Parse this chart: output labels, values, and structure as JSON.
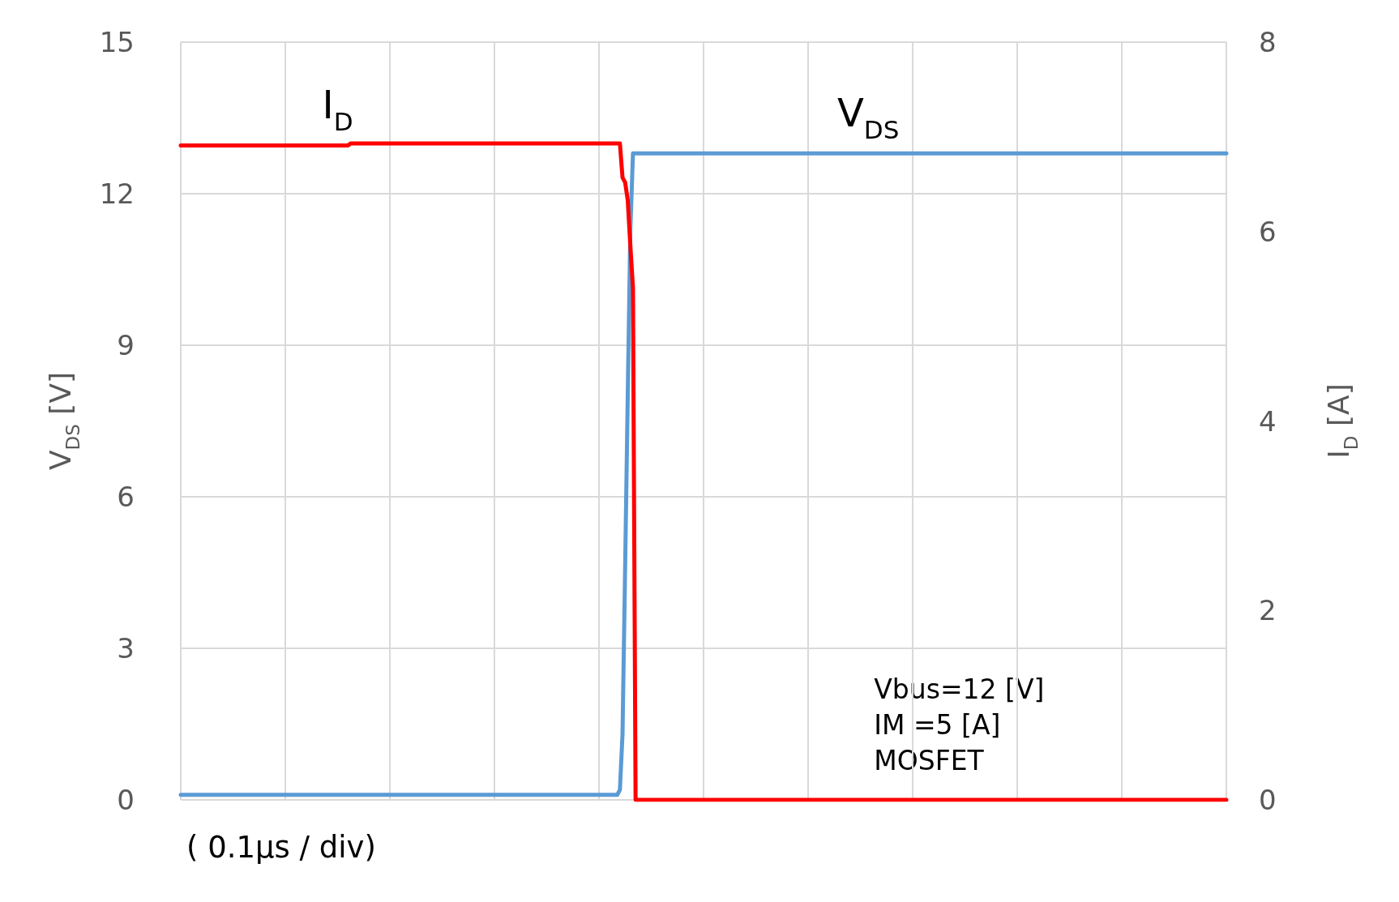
{
  "chart_data": {
    "type": "line",
    "xlabel": "( 0.1μs / div)",
    "ylabel": "V$_{DS}$ [V]",
    "y2label": "I$_{D}$ [A]",
    "annotations": [
      "Vbus=12 [V]",
      "IM =5 [A]",
      "MOSFET"
    ],
    "categories": [
      null,
      null,
      null,
      null,
      null,
      null,
      null,
      null,
      null,
      null,
      null,
      null,
      null,
      null,
      null,
      null,
      null,
      null,
      null,
      null,
      null,
      null,
      null,
      null,
      null,
      null,
      null,
      null,
      null,
      null,
      null,
      null,
      null,
      null,
      null,
      null,
      null,
      null,
      null,
      null,
      null,
      null,
      null,
      null,
      null,
      null,
      null,
      null,
      null,
      null,
      null,
      null,
      null,
      null,
      null,
      null,
      null,
      null,
      null,
      null,
      null,
      null,
      null,
      null,
      null,
      null,
      null,
      null,
      null,
      null,
      null,
      null,
      null,
      null,
      null,
      null,
      null,
      null,
      null,
      null,
      null,
      null,
      null,
      null,
      null,
      null,
      null,
      null,
      null,
      null,
      null,
      null,
      null,
      null,
      null,
      null,
      null,
      null,
      null,
      null,
      null,
      null,
      null,
      null,
      null,
      null,
      null,
      null,
      null,
      null,
      null,
      null,
      null,
      null,
      null,
      null,
      null,
      null,
      null,
      null,
      null,
      null,
      null,
      null,
      null,
      null,
      null,
      null,
      null,
      null,
      null,
      null,
      null,
      null,
      null,
      null,
      null,
      null,
      null,
      null,
      null,
      null,
      null,
      null,
      null,
      null,
      null,
      null,
      null,
      null,
      null,
      null,
      null,
      null,
      null,
      null,
      null,
      null,
      null,
      null,
      null,
      null,
      null,
      null,
      null,
      null,
      null,
      null,
      null,
      null,
      null,
      null,
      null,
      null,
      null,
      null,
      null,
      null,
      null,
      null,
      null,
      null,
      null,
      null,
      null,
      null,
      null,
      null,
      null,
      null,
      null,
      null,
      null,
      null,
      null,
      null,
      null,
      null,
      null,
      null,
      null,
      null,
      null,
      null,
      null,
      null,
      null,
      null,
      null,
      null,
      null,
      null,
      null,
      null,
      null,
      null,
      null,
      null,
      null,
      null,
      null,
      null,
      null,
      null,
      null,
      null,
      null,
      null,
      null,
      null,
      null,
      null,
      null,
      null,
      null,
      null,
      null,
      null,
      null,
      null,
      null,
      null,
      null,
      null,
      null,
      null,
      null,
      null,
      null,
      null,
      null,
      null,
      null,
      null,
      null,
      null,
      null,
      null,
      null,
      null,
      null,
      null,
      null,
      null,
      null,
      null,
      null,
      null,
      null,
      null,
      null,
      null,
      null,
      null,
      null,
      null,
      null,
      null,
      null,
      null,
      null,
      null,
      null,
      null,
      null,
      null,
      null,
      null,
      null,
      null,
      null,
      null,
      null,
      null,
      null,
      null,
      null,
      null,
      null,
      null,
      null,
      null,
      null,
      null,
      null,
      null,
      null,
      null,
      null,
      null,
      null,
      null,
      null,
      null,
      null,
      null,
      null,
      null,
      null,
      null,
      null,
      null,
      null,
      null,
      null,
      null,
      null,
      null,
      null,
      null,
      null,
      null,
      null,
      null,
      null,
      null,
      null,
      null,
      null,
      null,
      null,
      null,
      null,
      null,
      null,
      null,
      null,
      null,
      null,
      null,
      null,
      null,
      null,
      null,
      null,
      null,
      null,
      null,
      null,
      null,
      null,
      null,
      null,
      null,
      null,
      null,
      null,
      null,
      null,
      null,
      null,
      null,
      null,
      null,
      null,
      null,
      null,
      null,
      null,
      null,
      null,
      null,
      null,
      null,
      null,
      null,
      null,
      null,
      null,
      null,
      null,
      null,
      null,
      null,
      null,
      null,
      null,
      null,
      null,
      null,
      null
    ],
    "series": [
      {
        "name": "V$_{DS}$",
        "color": "#5b9bd5",
        "values": [
          0.1,
          0.1,
          0.1,
          0.1,
          0.1,
          0.1,
          0.1,
          0.1,
          0.1,
          0.1,
          0.1,
          0.1,
          0.1,
          0.1,
          0.1,
          0.1,
          0.1,
          0.1,
          0.1,
          0.1,
          0.1,
          0.1,
          0.1,
          0.1,
          0.1,
          0.1,
          0.1,
          0.1,
          0.1,
          0.1,
          0.1,
          0.1,
          0.1,
          0.1,
          0.1,
          0.1,
          0.1,
          0.1,
          0.1,
          0.1,
          0.1,
          0.1,
          0.1,
          0.1,
          0.1,
          0.1,
          0.1,
          0.1,
          0.1,
          0.1,
          0.1,
          0.1,
          0.1,
          0.1,
          0.1,
          0.1,
          0.1,
          0.1,
          0.1,
          0.1,
          0.1,
          0.1,
          0.1,
          0.1,
          0.1,
          0.1,
          0.1,
          0.1,
          0.1,
          0.1,
          0.1,
          0.1,
          0.1,
          0.1,
          0.1,
          0.1,
          0.1,
          0.1,
          0.1,
          0.1,
          0.1,
          0.1,
          0.1,
          0.1,
          0.1,
          0.1,
          0.1,
          0.1,
          0.1,
          0.1,
          0.1,
          0.1,
          0.1,
          0.1,
          0.1,
          0.1,
          0.1,
          0.1,
          0.1,
          0.1,
          0.1,
          0.1,
          0.1,
          0.1,
          0.1,
          0.1,
          0.1,
          0.1,
          0.1,
          0.1,
          0.1,
          0.1,
          0.1,
          0.1,
          0.1,
          0.1,
          0.1,
          0.1,
          0.1,
          0.1,
          0.1,
          0.1,
          0.1,
          0.1,
          0.1,
          0.1,
          0.1,
          0.1,
          0.1,
          0.1,
          0.1,
          0.1,
          0.1,
          0.1,
          0.1,
          0.1,
          0.1,
          0.1,
          0.1,
          0.1,
          0.1,
          0.1,
          0.1,
          0.1,
          0.1,
          0.1,
          0.1,
          0.1,
          0.1,
          0.1,
          0.1,
          0.1,
          0.1,
          0.1,
          0.1,
          0.1,
          0.1,
          0.1,
          0.1,
          0.1,
          0.1,
          0.1,
          0.1,
          0.1,
          0.1,
          0.1,
          0.1,
          0.1,
          0.2,
          1.3,
          4.6,
          8,
          11.3,
          12.8,
          12.8,
          12.8,
          12.8,
          12.8,
          12.8,
          12.8,
          12.8,
          12.8,
          12.8,
          12.8,
          12.8,
          12.8,
          12.8,
          12.8,
          12.8,
          12.8,
          12.8,
          12.8,
          12.8,
          12.8,
          12.8,
          12.8,
          12.8,
          12.8,
          12.8,
          12.8,
          12.8,
          12.8,
          12.8,
          12.8,
          12.8,
          12.8,
          12.8,
          12.8,
          12.8,
          12.8,
          12.8,
          12.8,
          12.8,
          12.8,
          12.8,
          12.8,
          12.8,
          12.8,
          12.8,
          12.8,
          12.8,
          12.8,
          12.8,
          12.8,
          12.8,
          12.8,
          12.8,
          12.8,
          12.8,
          12.8,
          12.8,
          12.8,
          12.8,
          12.8,
          12.8,
          12.8,
          12.8,
          12.8,
          12.8,
          12.8,
          12.8,
          12.8,
          12.8,
          12.8,
          12.8,
          12.8,
          12.8,
          12.8,
          12.8,
          12.8,
          12.8,
          12.8,
          12.8,
          12.8,
          12.8,
          12.8,
          12.8,
          12.8,
          12.8,
          12.8,
          12.8,
          12.8,
          12.8,
          12.8,
          12.8,
          12.8,
          12.8,
          12.8,
          12.8,
          12.8,
          12.8,
          12.8,
          12.8,
          12.8,
          12.8,
          12.8,
          12.8,
          12.8,
          12.8,
          12.8,
          12.8,
          12.8,
          12.8,
          12.8,
          12.8,
          12.8,
          12.8,
          12.8,
          12.8,
          12.8,
          12.8,
          12.8,
          12.8,
          12.8,
          12.8,
          12.8,
          12.8,
          12.8,
          12.8,
          12.8,
          12.8,
          12.8,
          12.8,
          12.8,
          12.8,
          12.8,
          12.8,
          12.8,
          12.8,
          12.8,
          12.8,
          12.8,
          12.8,
          12.8,
          12.8,
          12.8,
          12.8,
          12.8,
          12.8,
          12.8,
          12.8,
          12.8,
          12.8,
          12.8,
          12.8,
          12.8,
          12.8,
          12.8,
          12.8,
          12.8,
          12.8,
          12.8,
          12.8,
          12.8,
          12.8,
          12.8,
          12.8,
          12.8,
          12.8,
          12.8,
          12.8,
          12.8,
          12.8,
          12.8,
          12.8,
          12.8,
          12.8,
          12.8,
          12.8,
          12.8,
          12.8,
          12.8,
          12.8,
          12.8,
          12.8,
          12.8,
          12.8,
          12.8,
          12.8,
          12.8,
          12.8,
          12.8,
          12.8,
          12.8,
          12.8,
          12.8,
          12.8,
          12.8,
          12.8,
          12.8,
          12.8,
          12.8,
          12.8,
          12.8,
          12.8,
          12.8,
          12.8,
          12.8,
          12.8,
          12.8,
          12.8,
          12.8,
          12.8,
          12.8,
          12.8,
          12.8,
          12.8,
          12.8,
          12.8,
          12.8,
          12.8,
          12.8,
          12.8,
          12.8,
          12.8,
          12.8,
          12.8,
          12.8,
          12.8,
          12.8,
          12.8
        ]
      },
      {
        "name": "I$_{D}$",
        "color": "#ff0000",
        "axis": "y2",
        "values": [
          6.91,
          6.91,
          6.91,
          6.91,
          6.91,
          6.91,
          6.91,
          6.91,
          6.91,
          6.91,
          6.91,
          6.91,
          6.91,
          6.91,
          6.91,
          6.91,
          6.91,
          6.91,
          6.91,
          6.91,
          6.91,
          6.91,
          6.91,
          6.91,
          6.91,
          6.91,
          6.91,
          6.91,
          6.91,
          6.91,
          6.91,
          6.91,
          6.91,
          6.91,
          6.91,
          6.91,
          6.91,
          6.91,
          6.91,
          6.91,
          6.91,
          6.91,
          6.91,
          6.91,
          6.91,
          6.91,
          6.91,
          6.91,
          6.91,
          6.91,
          6.91,
          6.91,
          6.91,
          6.91,
          6.91,
          6.91,
          6.91,
          6.91,
          6.91,
          6.91,
          6.91,
          6.91,
          6.91,
          6.91,
          6.91,
          6.93,
          6.93,
          6.93,
          6.93,
          6.93,
          6.93,
          6.93,
          6.93,
          6.93,
          6.93,
          6.93,
          6.93,
          6.93,
          6.93,
          6.93,
          6.93,
          6.93,
          6.93,
          6.93,
          6.93,
          6.93,
          6.93,
          6.93,
          6.93,
          6.93,
          6.93,
          6.93,
          6.93,
          6.93,
          6.93,
          6.93,
          6.93,
          6.93,
          6.93,
          6.93,
          6.93,
          6.93,
          6.93,
          6.93,
          6.93,
          6.93,
          6.93,
          6.93,
          6.93,
          6.93,
          6.93,
          6.93,
          6.93,
          6.93,
          6.93,
          6.93,
          6.93,
          6.93,
          6.93,
          6.93,
          6.93,
          6.93,
          6.93,
          6.93,
          6.93,
          6.93,
          6.93,
          6.93,
          6.93,
          6.93,
          6.93,
          6.93,
          6.93,
          6.93,
          6.93,
          6.93,
          6.93,
          6.93,
          6.93,
          6.93,
          6.93,
          6.93,
          6.93,
          6.93,
          6.93,
          6.93,
          6.93,
          6.93,
          6.93,
          6.93,
          6.93,
          6.93,
          6.93,
          6.93,
          6.93,
          6.93,
          6.93,
          6.93,
          6.93,
          6.93,
          6.93,
          6.93,
          6.93,
          6.93,
          6.93,
          6.93,
          6.93,
          6.93,
          6.93,
          6.57,
          6.52,
          6.33,
          5.85,
          5.4,
          0,
          0,
          0,
          0,
          0,
          0,
          0,
          0,
          0,
          0,
          0,
          0,
          0,
          0,
          0,
          0,
          0,
          0,
          0,
          0,
          0,
          0,
          0,
          0,
          0,
          0,
          0,
          0,
          0,
          0,
          0,
          0,
          0,
          0,
          0,
          0,
          0,
          0,
          0,
          0,
          0,
          0,
          0,
          0,
          0,
          0,
          0,
          0,
          0,
          0,
          0,
          0,
          0,
          0,
          0,
          0,
          0,
          0,
          0,
          0,
          0,
          0,
          0,
          0,
          0,
          0,
          0,
          0,
          0,
          0,
          0,
          0,
          0,
          0,
          0,
          0,
          0,
          0,
          0,
          0,
          0,
          0,
          0,
          0,
          0,
          0,
          0,
          0,
          0,
          0,
          0,
          0,
          0,
          0,
          0,
          0,
          0,
          0,
          0,
          0,
          0,
          0,
          0,
          0,
          0,
          0,
          0,
          0,
          0,
          0,
          0,
          0,
          0,
          0,
          0,
          0,
          0,
          0,
          0,
          0,
          0,
          0,
          0,
          0,
          0,
          0,
          0,
          0,
          0,
          0,
          0,
          0,
          0,
          0,
          0,
          0,
          0,
          0,
          0,
          0,
          0,
          0,
          0,
          0,
          0,
          0,
          0,
          0,
          0,
          0,
          0,
          0,
          0,
          0,
          0,
          0,
          0,
          0,
          0,
          0,
          0,
          0,
          0,
          0,
          0,
          0,
          0,
          0,
          0,
          0,
          0,
          0,
          0,
          0,
          0,
          0,
          0,
          0,
          0,
          0,
          0,
          0,
          0,
          0,
          0,
          0,
          0,
          0,
          0,
          0,
          0,
          0,
          0,
          0,
          0,
          0,
          0,
          0,
          0,
          0,
          0,
          0,
          0,
          0,
          0,
          0,
          0,
          0,
          0,
          0,
          0,
          0,
          0,
          0,
          0,
          0,
          0,
          0,
          0,
          0,
          0,
          0,
          0,
          0,
          0,
          0,
          0
        ]
      }
    ],
    "ylim": [
      0,
      15
    ],
    "yticks": [
      0,
      3,
      6,
      9,
      12,
      15
    ],
    "y2lim": [
      0,
      8
    ],
    "y2ticks": [
      0,
      2,
      4,
      6,
      8
    ],
    "grid": true,
    "legend": false,
    "marker": "none",
    "line_style": "solid"
  }
}
